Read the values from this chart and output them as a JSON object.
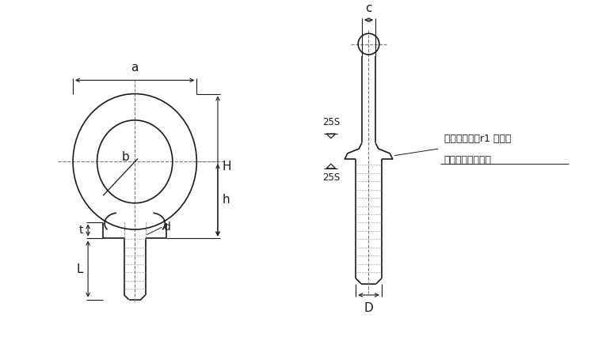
{
  "bg_color": "#ffffff",
  "line_color": "#1a1a1a",
  "dash_color": "#777777",
  "figsize": [
    7.5,
    4.5
  ],
  "dpi": 100,
  "labels": {
    "a": "a",
    "b": "b",
    "H": "H",
    "h": "h",
    "t": "t",
    "L": "L",
    "d": "d",
    "c": "c",
    "D": "D",
    "note_line1": "首下には必ずr1 以上の",
    "note_line2": "丸みをつけること",
    "25S": "25S"
  },
  "font_size": 10,
  "note_font_size": 9,
  "lw": 1.2,
  "lw_thin": 0.7,
  "lw_dim": 0.8
}
